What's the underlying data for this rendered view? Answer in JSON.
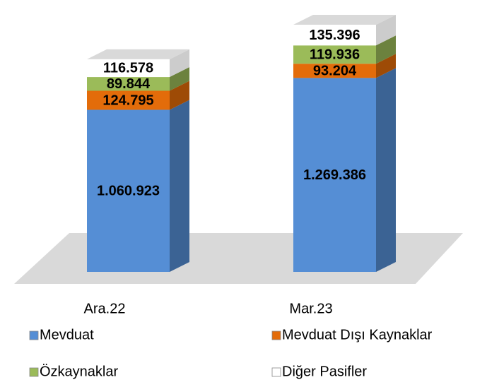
{
  "chart_data": {
    "type": "stacked_bar_3d",
    "categories": [
      "Ara.22",
      "Mar.23"
    ],
    "series": [
      {
        "name": "Mevduat",
        "color": "#558ed5",
        "values": [
          1060923,
          1269386
        ],
        "value_labels": [
          "1.060.923",
          "1.269.386"
        ]
      },
      {
        "name": "Mevduat Dışı Kaynaklar",
        "color": "#e36c0a",
        "values": [
          124795,
          93204
        ],
        "value_labels": [
          "124.795",
          "93.204"
        ]
      },
      {
        "name": "Özkaynaklar",
        "color": "#9bbb59",
        "values": [
          89844,
          119936
        ],
        "value_labels": [
          "89.844",
          "119.936"
        ]
      },
      {
        "name": "Diğer Pasifler",
        "color": "#ffffff",
        "values": [
          116578,
          135396
        ],
        "value_labels": [
          "116.578",
          "135.396"
        ]
      }
    ]
  }
}
